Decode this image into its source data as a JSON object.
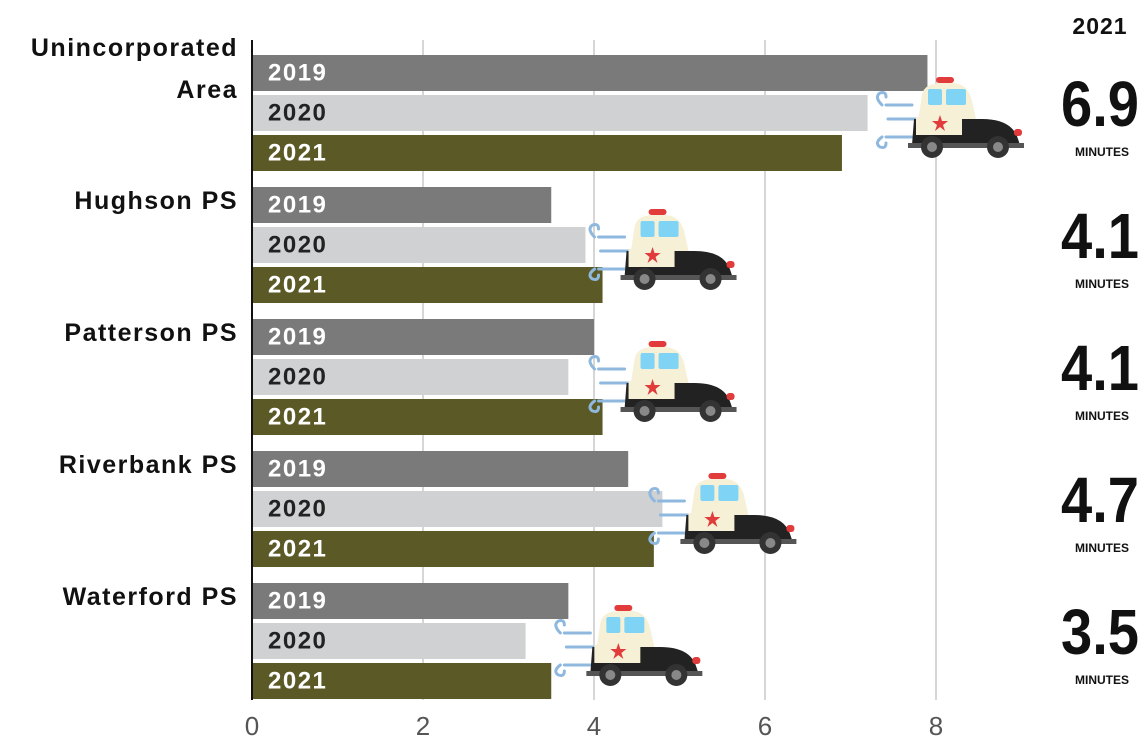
{
  "chart_data": {
    "type": "bar",
    "orientation": "horizontal",
    "categories": [
      "Unincorporated Area",
      "Hughson PS",
      "Patterson PS",
      "Riverbank PS",
      "Waterford PS"
    ],
    "series": [
      {
        "name": "2019",
        "color": "#7a7a7b",
        "values": [
          7.9,
          3.5,
          4.0,
          4.4,
          3.7
        ]
      },
      {
        "name": "2020",
        "color": "#d0d1d3",
        "values": [
          7.2,
          3.9,
          3.7,
          4.8,
          3.2
        ]
      },
      {
        "name": "2021",
        "color": "#5b5a27",
        "values": [
          6.9,
          4.1,
          4.1,
          4.7,
          3.5
        ]
      }
    ],
    "unit_label": "MINUTES",
    "xlim": [
      0,
      8
    ],
    "xticks": [
      0,
      2,
      4,
      6,
      8
    ],
    "grid": true
  }
}
